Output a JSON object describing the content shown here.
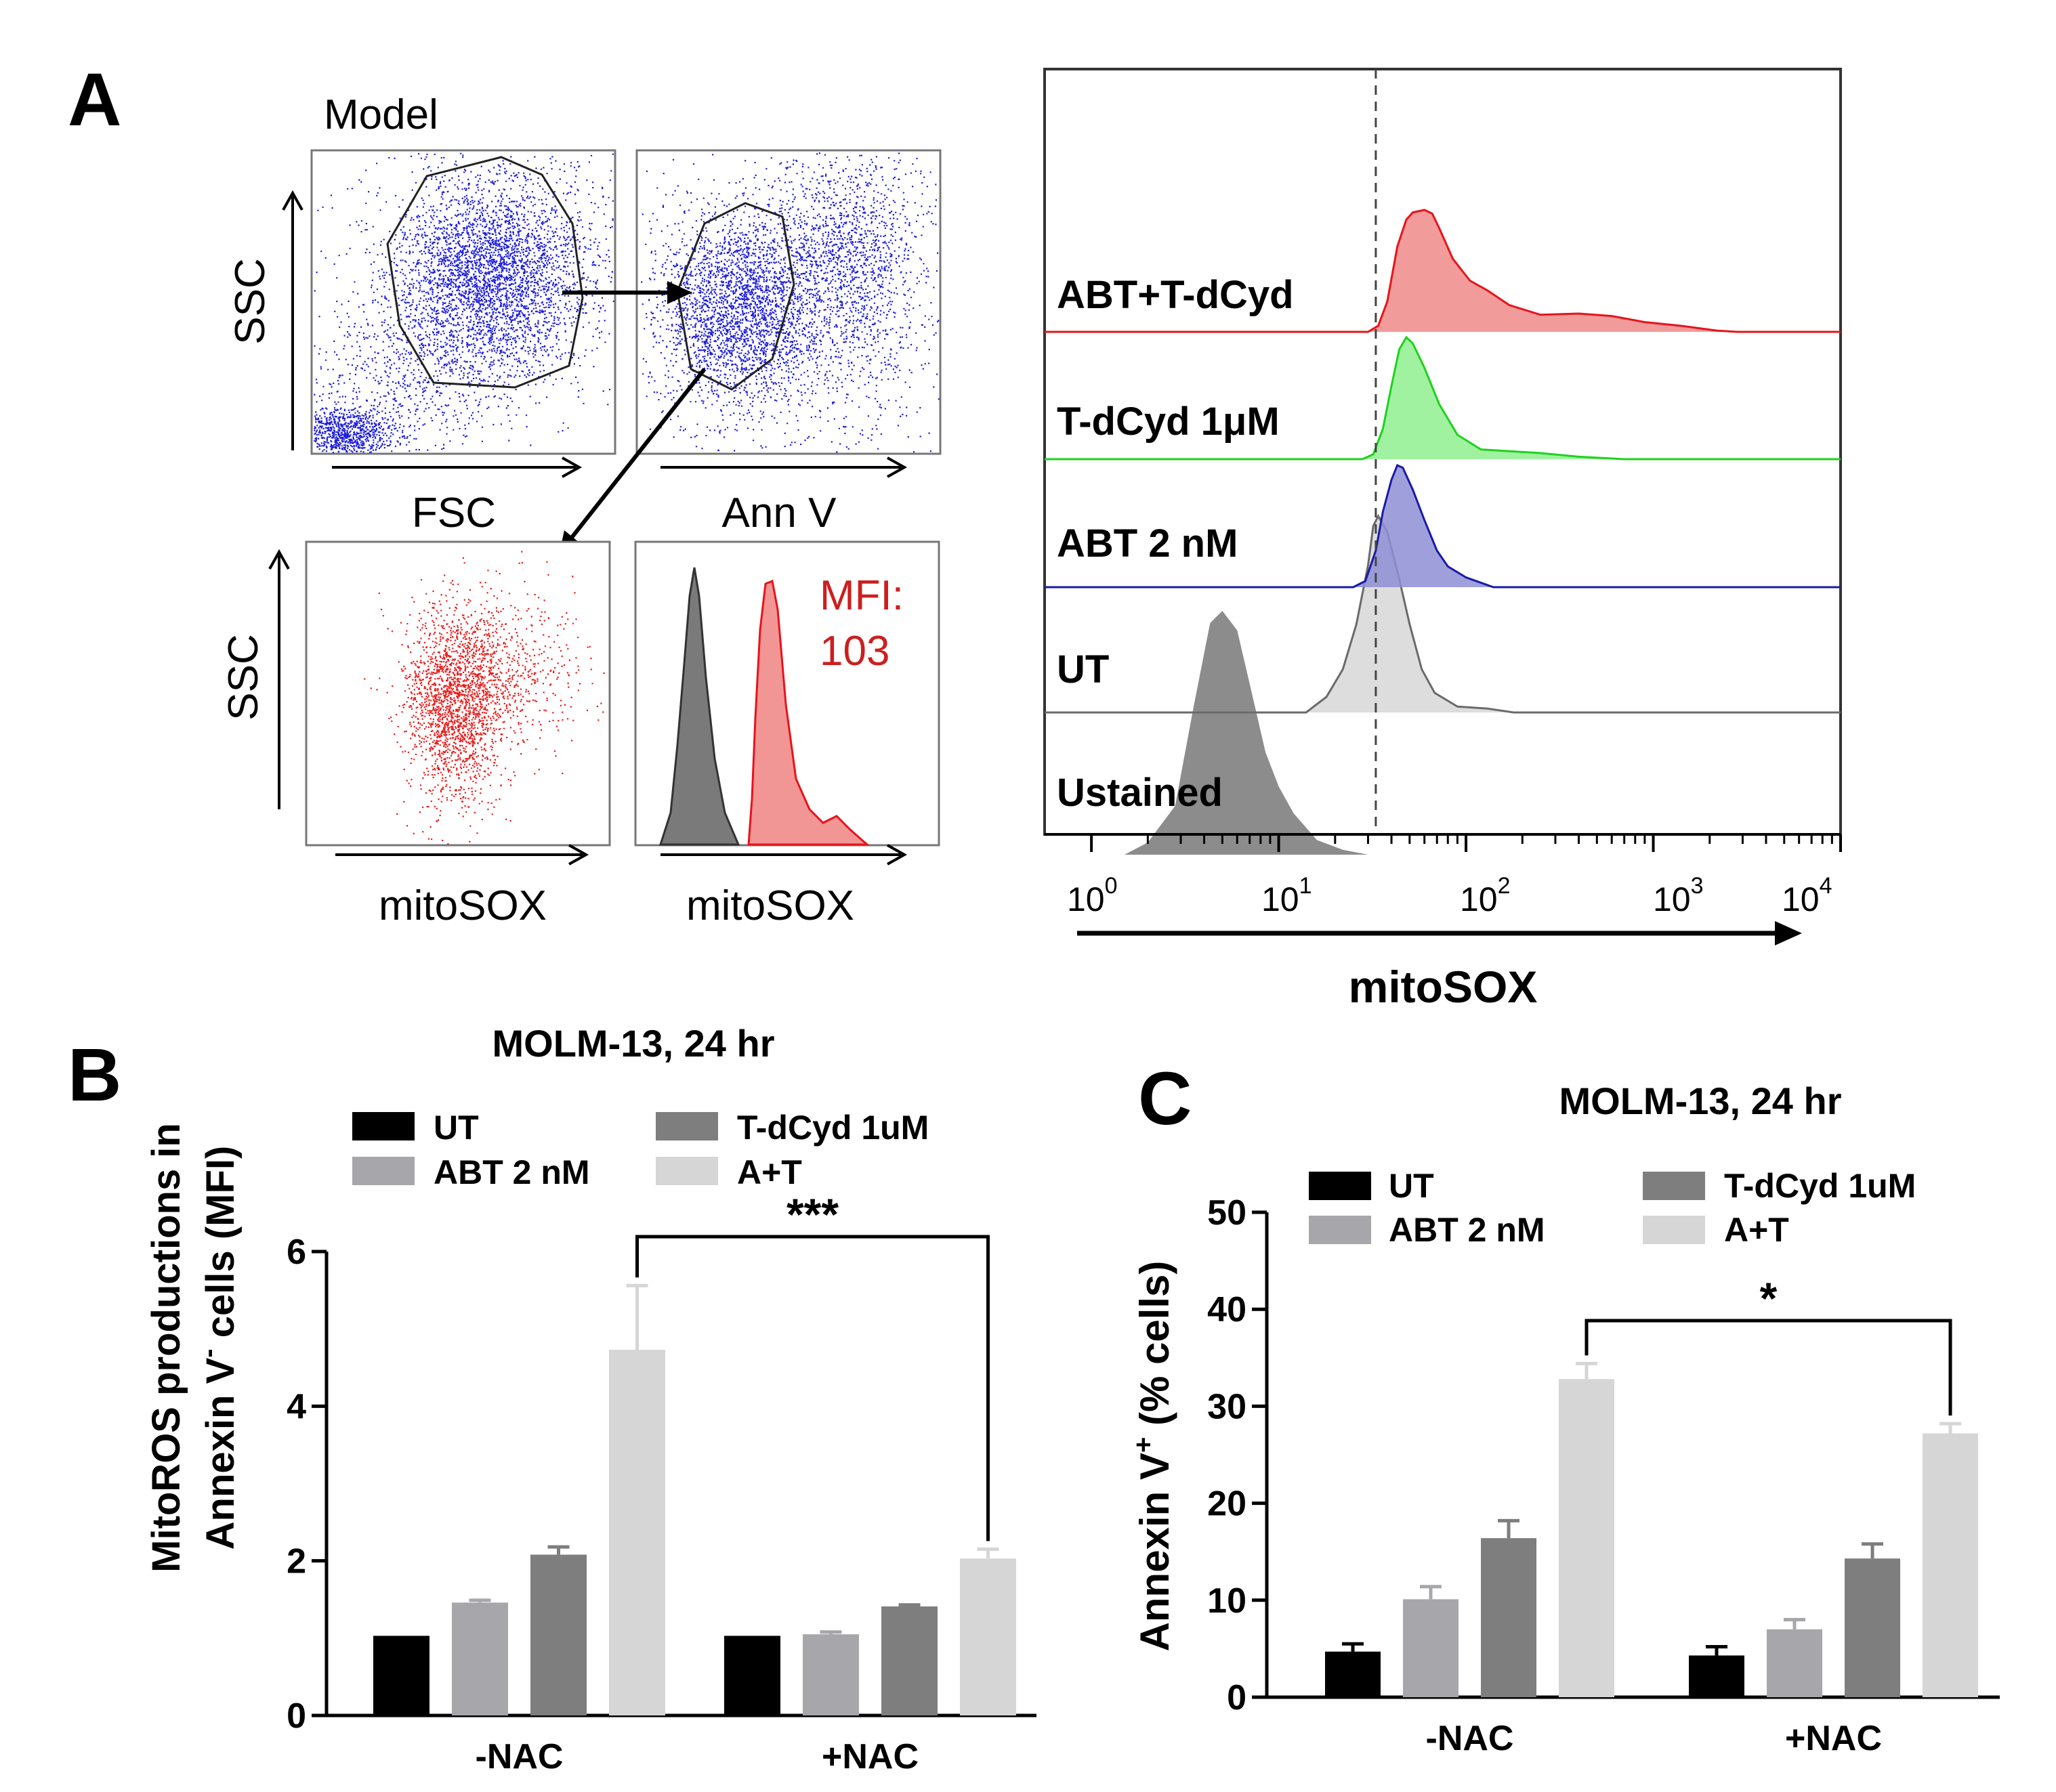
{
  "panel_a": {
    "letter": "A",
    "model_label": "Model",
    "mfi_label": "MFI:",
    "mfi_value": "103",
    "gating_axes": {
      "ssc": "SSC",
      "fsc": "FSC",
      "annv": "Ann V",
      "mitosox_scatter": "mitoSOX",
      "mitosox_hist": "mitoSOX"
    },
    "overlay": {
      "xlabel": "mitoSOX",
      "tick_base": "10",
      "tick_exponents": [
        "0",
        "1",
        "2",
        "3",
        "4"
      ],
      "reference_line_at": 33,
      "samples": [
        {
          "label": "ABT+T-dCyd",
          "fill": "#f08a8a",
          "stroke": "#e8131a"
        },
        {
          "label": "T-dCyd 1μM",
          "fill": "#8ff08f",
          "stroke": "#1ed21e"
        },
        {
          "label": "ABT 2 nM",
          "fill": "#8e8ed6",
          "stroke": "#1a1aa6"
        },
        {
          "label": "UT",
          "fill": "#d7d7d7",
          "stroke": "#6a6a6a"
        },
        {
          "label": "Ustained",
          "fill": "#8c8c8c",
          "stroke": "#8c8c8c"
        }
      ]
    }
  },
  "chart_data": [
    {
      "type": "bar",
      "panel": "B",
      "title": "MOLM-13, 24 hr",
      "ylabel_line1": "MitoROS productions in",
      "ylabel_line2_prefix": "Annexin V",
      "ylabel_line2_sup": "-",
      "ylabel_line2_suffix": " cells (MFI)",
      "categories": [
        "-NAC",
        "+NAC"
      ],
      "ylim": [
        0,
        6
      ],
      "yticks": [
        "0",
        "2",
        "4",
        "6"
      ],
      "series": [
        {
          "name": "UT",
          "color": "#000000",
          "values": [
            1.03,
            1.03
          ],
          "errors": [
            0,
            0
          ]
        },
        {
          "name": "ABT 2 nM",
          "color": "#a7a7ab",
          "values": [
            1.46,
            1.05
          ],
          "errors": [
            0.03,
            0.03
          ]
        },
        {
          "name": "T-dCyd 1uM",
          "color": "#7e7e7e",
          "values": [
            2.08,
            1.41
          ],
          "errors": [
            0.1,
            0.02
          ]
        },
        {
          "name": "A+T",
          "color": "#d6d6d6",
          "values": [
            4.73,
            2.03
          ],
          "errors": [
            0.83,
            0.12
          ]
        }
      ],
      "significance": {
        "label": "***",
        "between": [
          "-NAC:A+T",
          "+NAC:A+T"
        ]
      }
    },
    {
      "type": "bar",
      "panel": "C",
      "title": "MOLM-13, 24 hr",
      "ylabel_prefix": "Annexin V",
      "ylabel_sup": "+",
      "ylabel_suffix": " (% cells)",
      "categories": [
        "-NAC",
        "+NAC"
      ],
      "ylim": [
        0,
        50
      ],
      "yticks": [
        "0",
        "10",
        "20",
        "30",
        "40",
        "50"
      ],
      "series": [
        {
          "name": "UT",
          "color": "#000000",
          "values": [
            4.7,
            4.3
          ],
          "errors": [
            0.8,
            0.9
          ]
        },
        {
          "name": "ABT 2 nM",
          "color": "#a7a7ab",
          "values": [
            10.1,
            7.0
          ],
          "errors": [
            1.3,
            1.0
          ]
        },
        {
          "name": "T-dCyd 1uM",
          "color": "#7e7e7e",
          "values": [
            16.4,
            14.3
          ],
          "errors": [
            1.8,
            1.5
          ]
        },
        {
          "name": "A+T",
          "color": "#d6d6d6",
          "values": [
            32.8,
            27.2
          ],
          "errors": [
            1.6,
            1.0
          ]
        }
      ],
      "significance": {
        "label": "*",
        "between": [
          "-NAC:A+T",
          "+NAC:A+T"
        ]
      }
    }
  ]
}
